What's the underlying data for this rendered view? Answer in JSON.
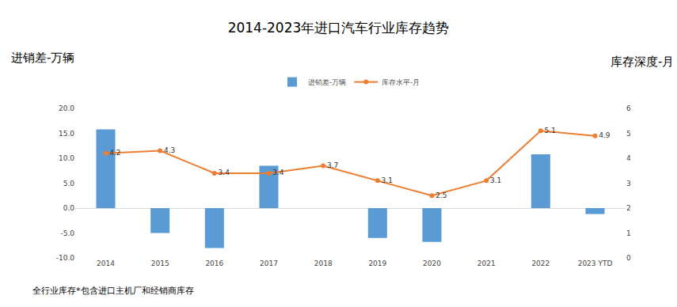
{
  "chart_data": {
    "type": "bar",
    "title": "2014-2023年进口汽车行业库存趋势",
    "ylabel": "进销差-万辆",
    "y2label": "库存深度-月",
    "footnote": "全行业库存*包含进口主机厂和经销商库存",
    "categories": [
      "2014",
      "2015",
      "2016",
      "2017",
      "2018",
      "2019",
      "2020",
      "2021",
      "2022",
      "2023 YTD"
    ],
    "series": [
      {
        "name": "进销差-万辆",
        "type": "bar",
        "color": "#5b9bd5",
        "values": [
          15.8,
          -5.0,
          -8.0,
          8.5,
          null,
          -6.0,
          -6.8,
          null,
          10.8,
          -1.2
        ]
      },
      {
        "name": "库存水平-月",
        "type": "line",
        "axis": "y2",
        "color": "#ed7d31",
        "marker": "circle",
        "data_labels": true,
        "values": [
          4.2,
          4.3,
          3.4,
          3.4,
          3.7,
          3.1,
          2.5,
          3.1,
          5.1,
          4.9
        ]
      }
    ],
    "ylim": [
      -10,
      20
    ],
    "yticks": [
      {
        "value": -10,
        "label": "-10.0"
      },
      {
        "value": -5,
        "label": "-5.0"
      },
      {
        "value": 0,
        "label": "0.0"
      },
      {
        "value": 5,
        "label": "5.0"
      },
      {
        "value": 10,
        "label": "10.0"
      },
      {
        "value": 15,
        "label": "15.0"
      },
      {
        "value": 20,
        "label": "20.0"
      }
    ],
    "y2lim": [
      0,
      6
    ],
    "y2ticks": [
      0,
      1,
      2,
      3,
      4,
      5,
      6
    ],
    "grid": false,
    "legend": "top"
  }
}
